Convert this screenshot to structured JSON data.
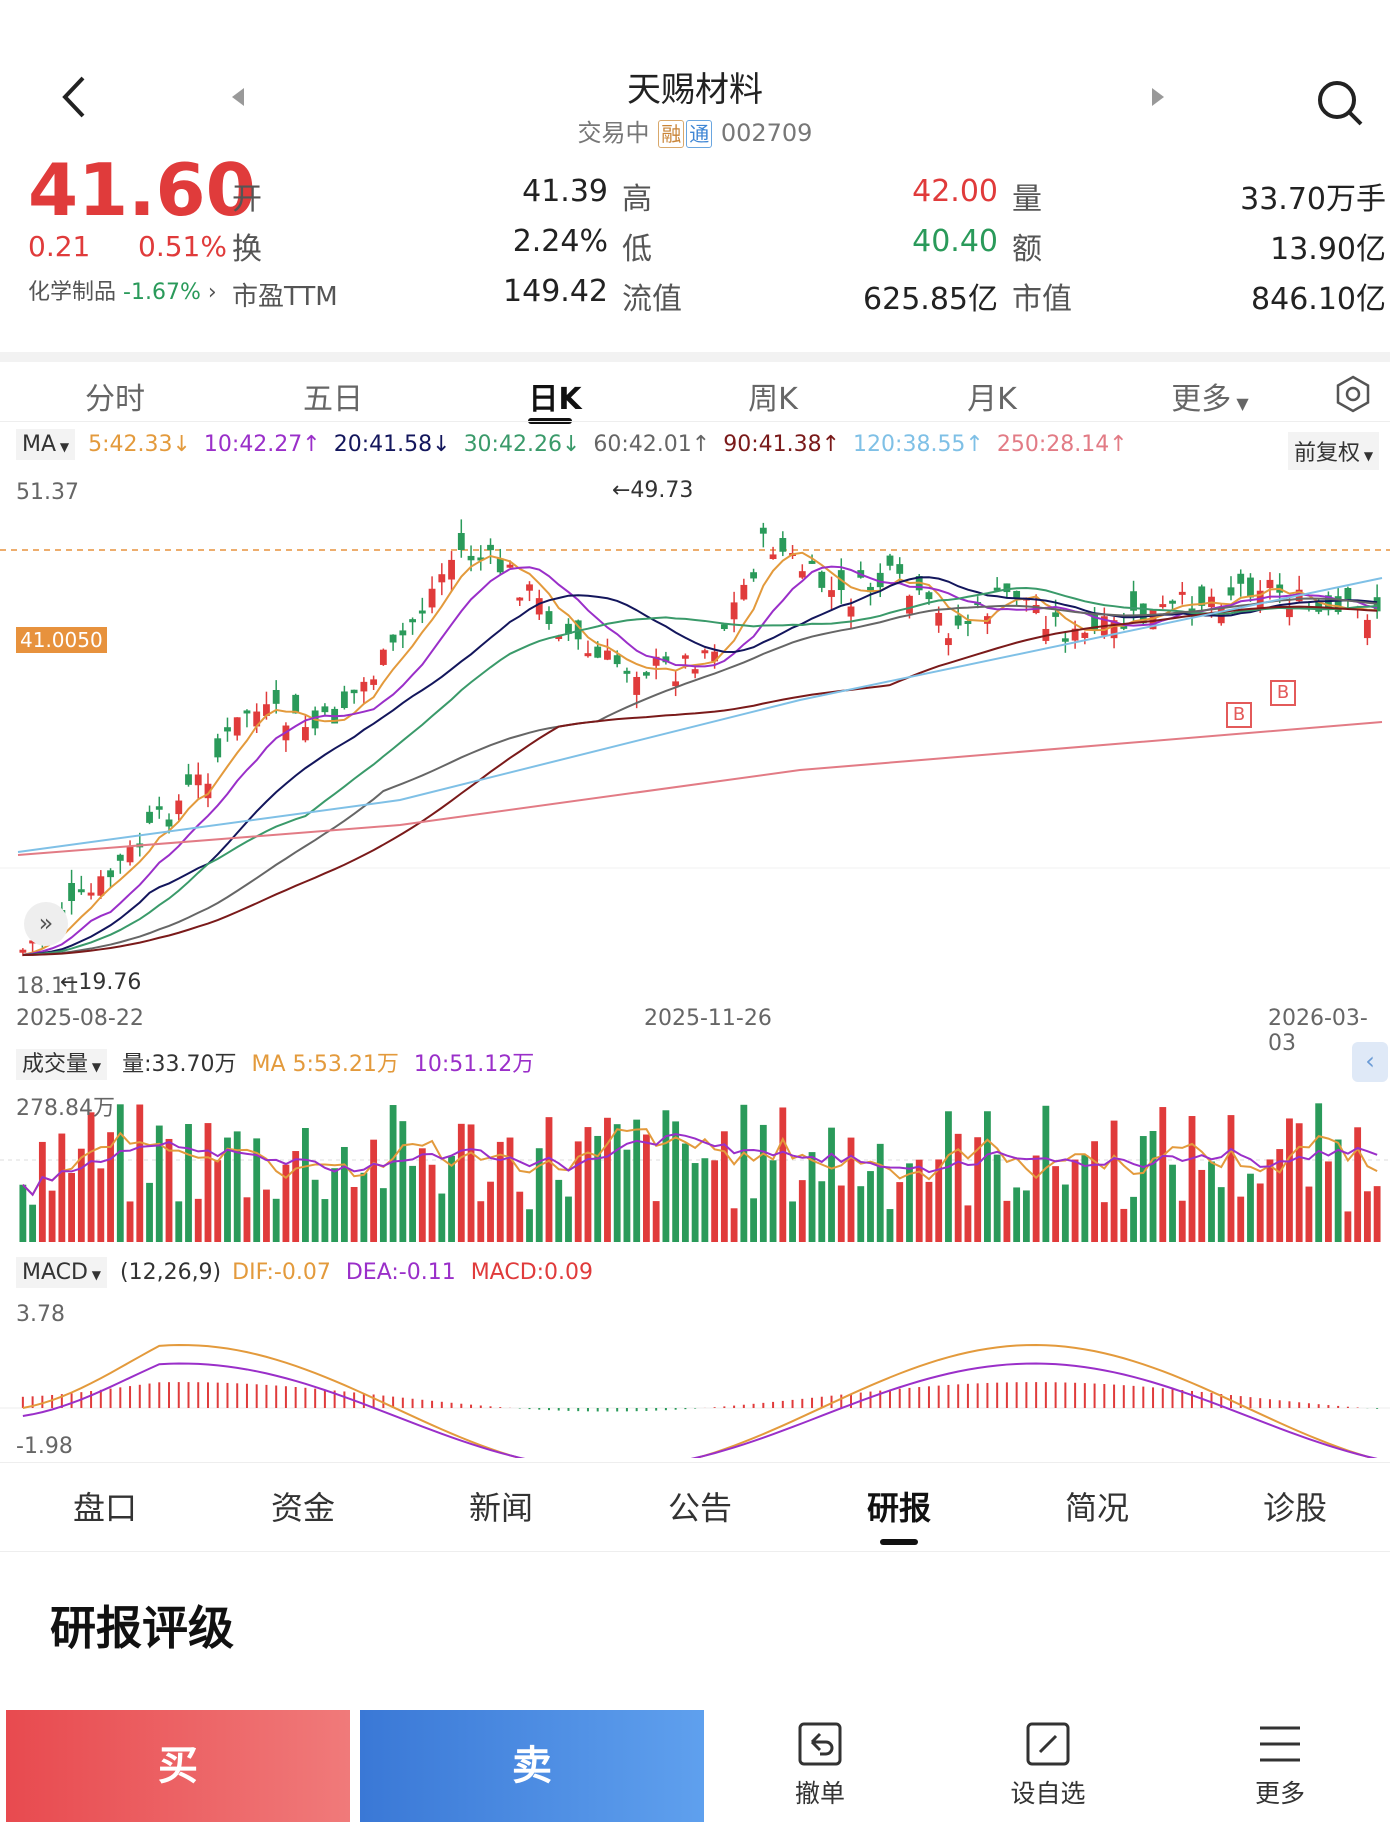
{
  "header": {
    "title": "天赐材料",
    "status": "交易中",
    "tag1": "融",
    "tag2": "通",
    "code": "002709"
  },
  "quote": {
    "price": "41.60",
    "change": "0.21",
    "change_pct": "0.51%",
    "sector": "化学制品",
    "sector_pct": "-1.67%",
    "open_label": "开",
    "open": "41.39",
    "high_label": "高",
    "high": "42.00",
    "vol_label": "量",
    "vol": "33.70万手",
    "turn_label": "换",
    "turn": "2.24%",
    "low_label": "低",
    "low": "40.40",
    "amt_label": "额",
    "amt": "13.90亿",
    "pe_label": "市盈TTM",
    "pe": "149.42",
    "fmv_label": "流值",
    "fmv": "625.85亿",
    "mv_label": "市值",
    "mv": "846.10亿"
  },
  "tabs": [
    "分时",
    "五日",
    "日K",
    "周K",
    "月K",
    "更多"
  ],
  "ma_bar": {
    "ma": "MA",
    "m5": "5:42.33↓",
    "m10": "10:42.27↑",
    "m20": "20:41.58↓",
    "m30": "30:42.26↓",
    "m60": "60:42.01↑",
    "m90": "90:41.38↑",
    "m120": "120:38.55↑",
    "m250": "250:28.14↑",
    "adj": "前复权"
  },
  "kline": {
    "ymax": "51.37",
    "ymin": "18.11",
    "price_line": "41.0050",
    "high_mark": "←49.73",
    "low_mark": "←19.76",
    "d1": "2025-08-22",
    "d2": "2025-11-26",
    "d3": "2026-03-03",
    "buy_mark": "B"
  },
  "volume": {
    "label": "成交量",
    "vol": "量:33.70万",
    "ma5": "MA 5:53.21万",
    "ma10": "10:51.12万",
    "ymax": "278.84万"
  },
  "macd": {
    "label": "MACD",
    "params": "(12,26,9)",
    "dif": "DIF:-0.07",
    "dea": "DEA:-0.11",
    "macd": "MACD:0.09",
    "ymax": "3.78",
    "ymin": "-1.98"
  },
  "bottom_tabs": [
    "盘口",
    "资金",
    "新闻",
    "公告",
    "研报",
    "简况",
    "诊股"
  ],
  "section_title": "研报评级",
  "actions": {
    "buy": "买",
    "sell": "卖",
    "cancel": "撤单",
    "watch": "设自选",
    "more": "更多"
  },
  "colors": {
    "up": "#e03b3b",
    "down": "#2a9a5a",
    "ma5": "#e39a3c",
    "ma10": "#9a2fc9",
    "ma20": "#13165c",
    "ma30": "#3a9a6a",
    "ma60": "#666666",
    "ma90": "#7a1a1a",
    "ma120": "#7fc0e6",
    "ma250": "#e27b85"
  }
}
